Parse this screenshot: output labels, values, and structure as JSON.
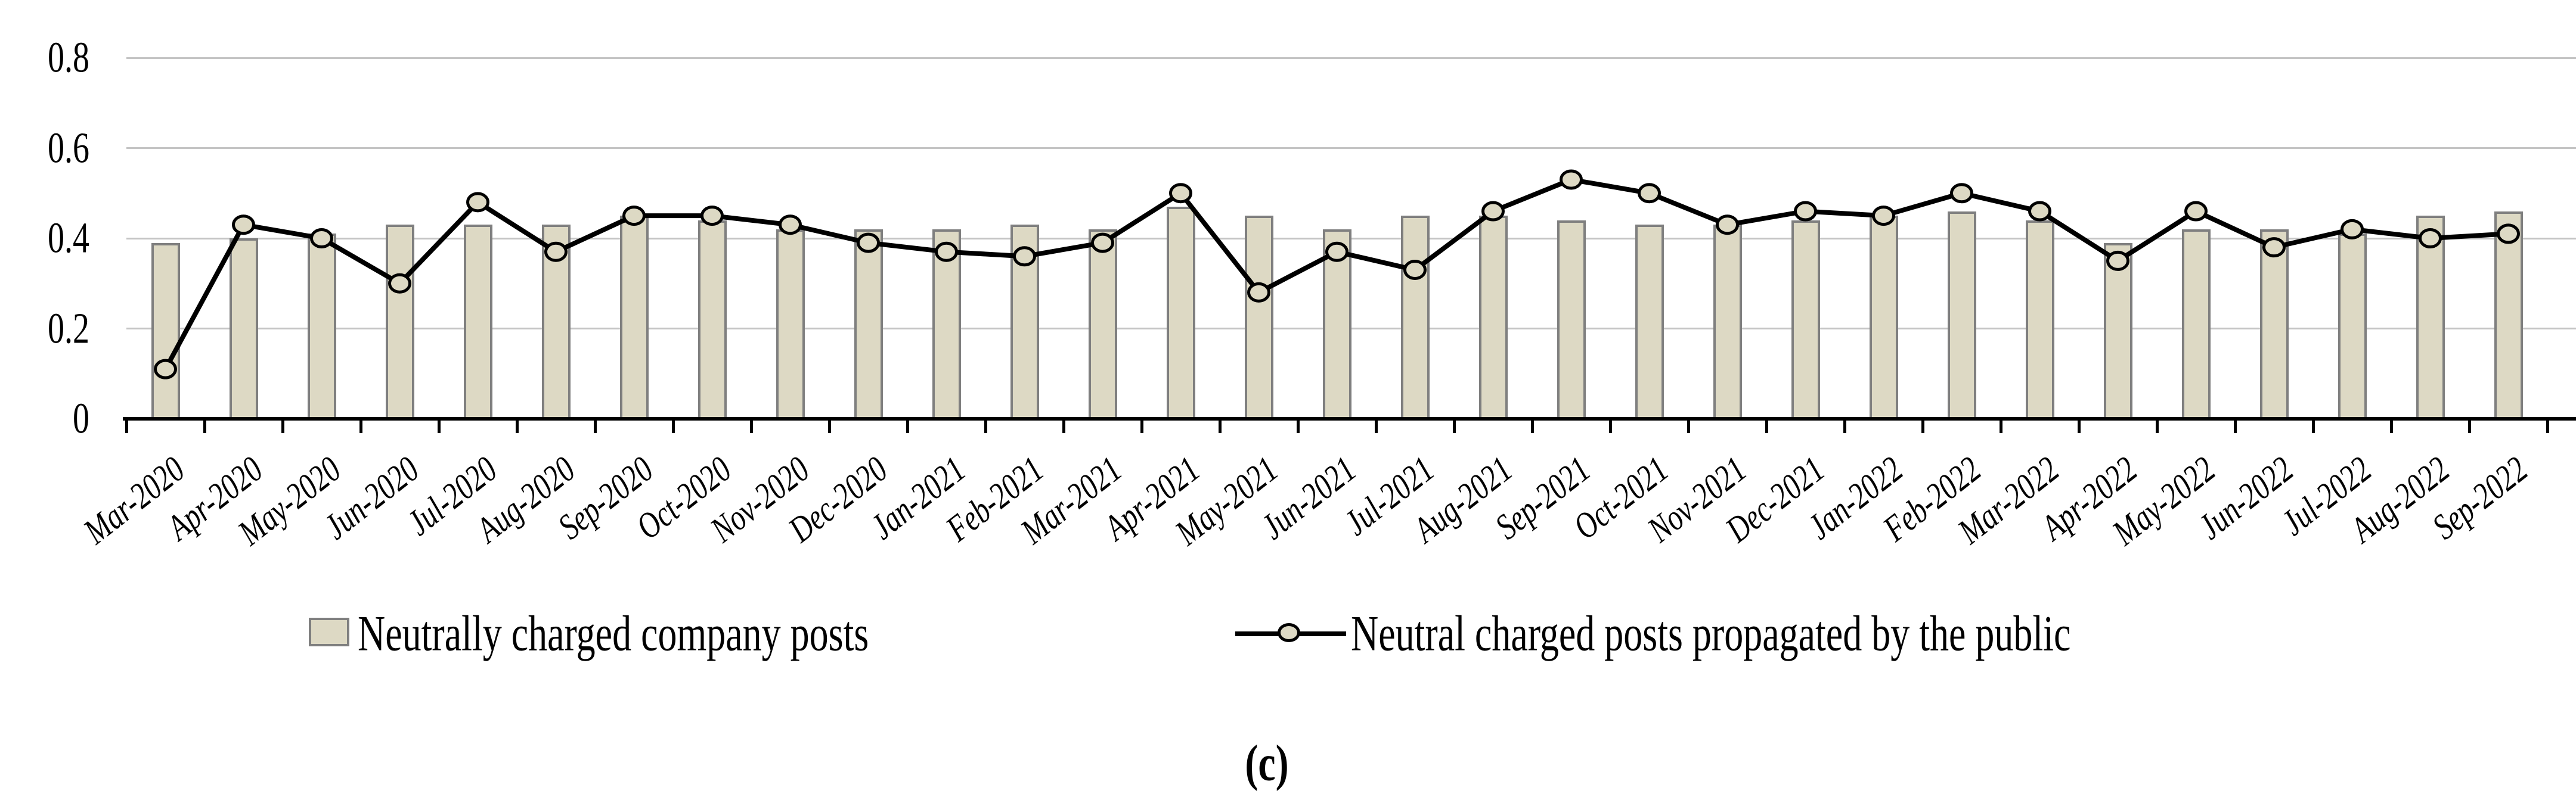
{
  "chart_data": {
    "type": "bar",
    "title": "",
    "xlabel": "",
    "ylabel": "",
    "ylim": [
      0,
      0.8
    ],
    "ytick_labels": [
      "0",
      "0.2",
      "0.4",
      "0.6",
      "0.8"
    ],
    "ytick_values": [
      0,
      0.2,
      0.4,
      0.6,
      0.8
    ],
    "grid": true,
    "legend_position": "bottom",
    "caption": "(c)",
    "categories": [
      "Mar-2020",
      "Apr-2020",
      "May-2020",
      "Jun-2020",
      "Jul-2020",
      "Aug-2020",
      "Sep-2020",
      "Oct-2020",
      "Nov-2020",
      "Dec-2020",
      "Jan-2021",
      "Feb-2021",
      "Mar-2021",
      "Apr-2021",
      "May-2021",
      "Jun-2021",
      "Jul-2021",
      "Aug-2021",
      "Sep-2021",
      "Oct-2021",
      "Nov-2021",
      "Dec-2021",
      "Jan-2022",
      "Feb-2022",
      "Mar-2022",
      "Apr-2022",
      "May-2022",
      "Jun-2022",
      "Jul-2022",
      "Aug-2022",
      "Sep-2022"
    ],
    "series": [
      {
        "name": "Neutrally charged company posts",
        "kind": "bar",
        "values": [
          0.39,
          0.4,
          0.41,
          0.43,
          0.43,
          0.43,
          0.45,
          0.44,
          0.42,
          0.42,
          0.42,
          0.43,
          0.42,
          0.47,
          0.45,
          0.42,
          0.45,
          0.45,
          0.44,
          0.43,
          0.43,
          0.44,
          0.45,
          0.46,
          0.44,
          0.39,
          0.42,
          0.42,
          0.41,
          0.45,
          0.46
        ]
      },
      {
        "name": "Neutral charged posts propagated by the public",
        "kind": "line",
        "values": [
          0.11,
          0.43,
          0.4,
          0.3,
          0.48,
          0.37,
          0.45,
          0.45,
          0.43,
          0.39,
          0.37,
          0.36,
          0.39,
          0.5,
          0.28,
          0.37,
          0.33,
          0.46,
          0.53,
          0.5,
          0.43,
          0.46,
          0.45,
          0.5,
          0.46,
          0.35,
          0.46,
          0.38,
          0.42,
          0.4,
          0.41
        ]
      }
    ]
  },
  "colors": {
    "bar_fill": "#ddd9c4",
    "bar_border": "#7f7f7f",
    "marker_fill": "#ddd9c4",
    "line": "#000000",
    "gridline": "#c4c4c4",
    "axis": "#000000",
    "background": "#ffffff"
  }
}
